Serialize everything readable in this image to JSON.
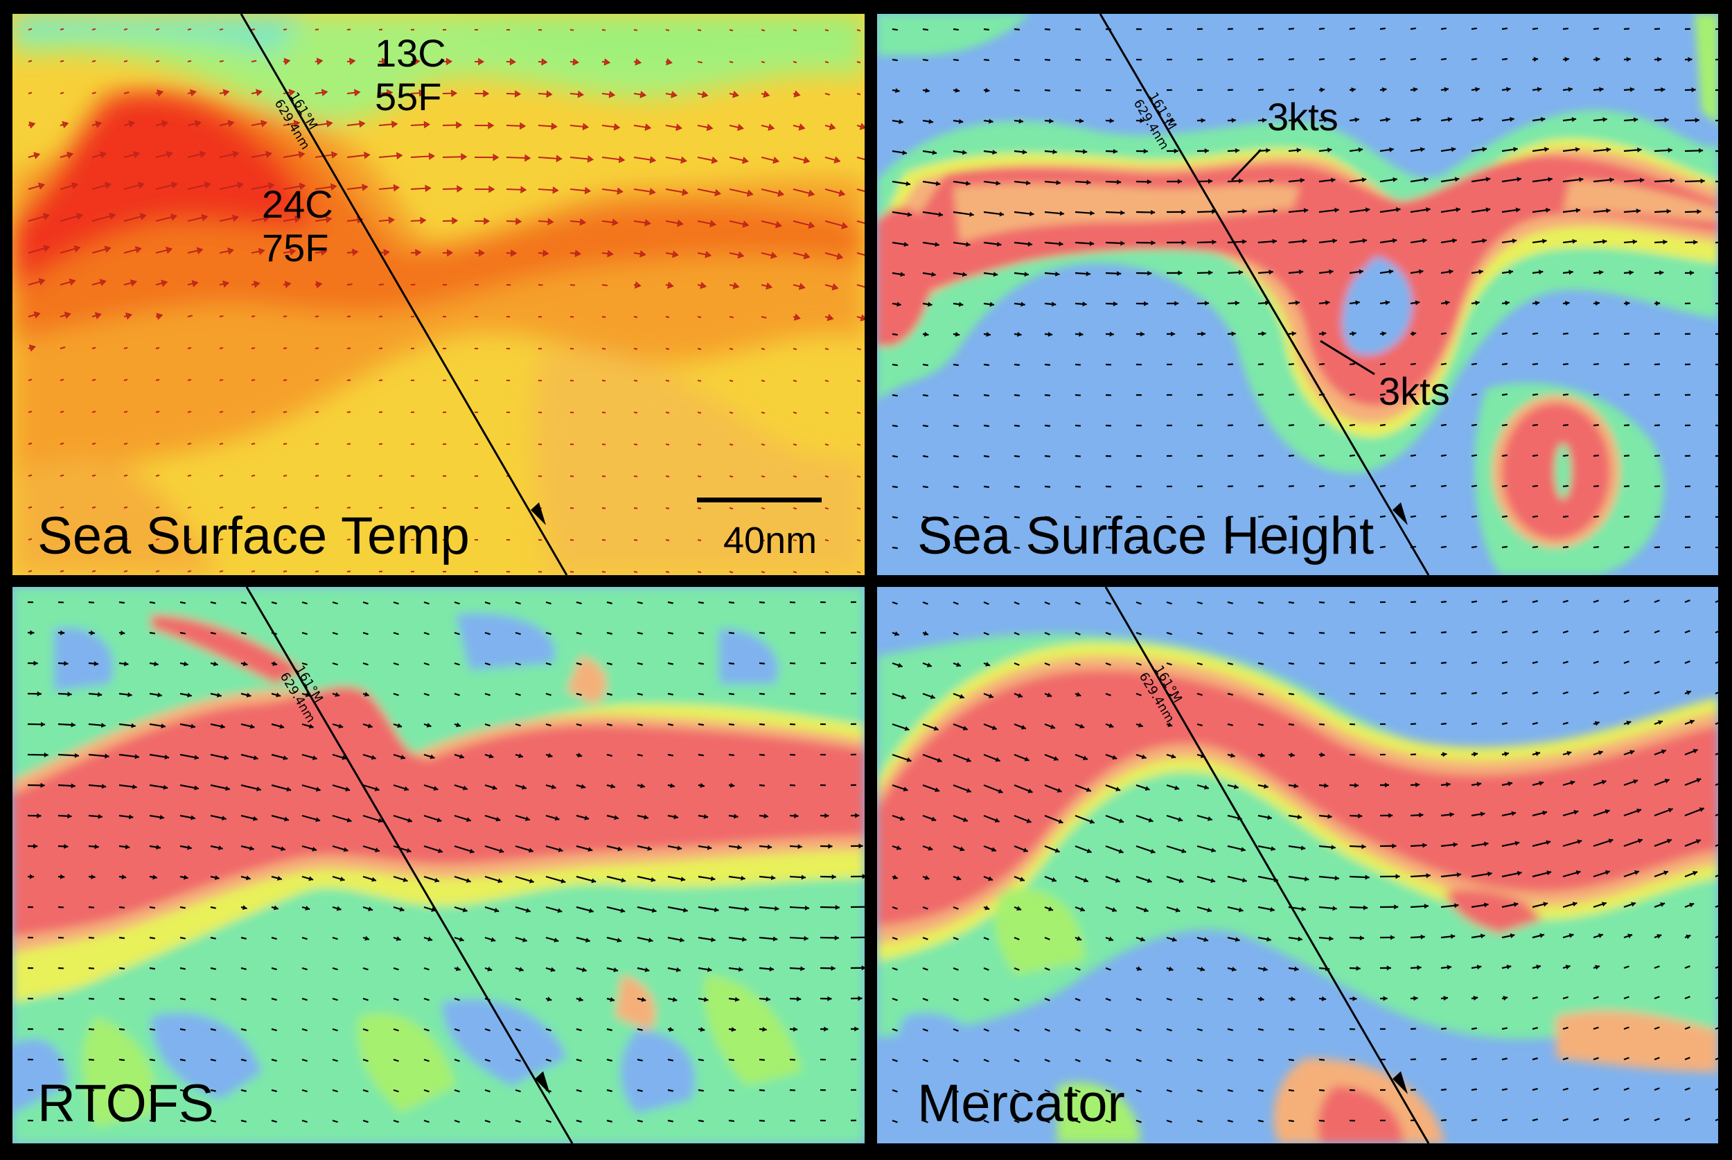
{
  "panels": {
    "sst": {
      "title": "Sea Surface Temp",
      "cold_c": "13C",
      "cold_f": "55F",
      "warm_c": "24C",
      "warm_f": "75F",
      "scale_label": "40nm"
    },
    "ssh": {
      "title": "Sea Surface Height",
      "speed_label_1": "3kts",
      "speed_label_2": "3kts"
    },
    "rtofs": {
      "title": "RTOFS"
    },
    "mercator": {
      "title": "Mercator"
    }
  },
  "route": {
    "heading": "161°M",
    "distance": "629.4nm"
  },
  "colors": {
    "water_blue": "#7fb2ee",
    "low_green": "#7de8a8",
    "mid_green": "#a6f070",
    "yellow": "#e8f05a",
    "orange": "#f5b07a",
    "red": "#f06a6a",
    "sst_cool": "#8cf0a0",
    "sst_warm": "#f5a02a",
    "sst_hot": "#f03a1a",
    "border": "#000000"
  },
  "icons": [
    "current-arrow-icon",
    "route-arrow-icon"
  ]
}
